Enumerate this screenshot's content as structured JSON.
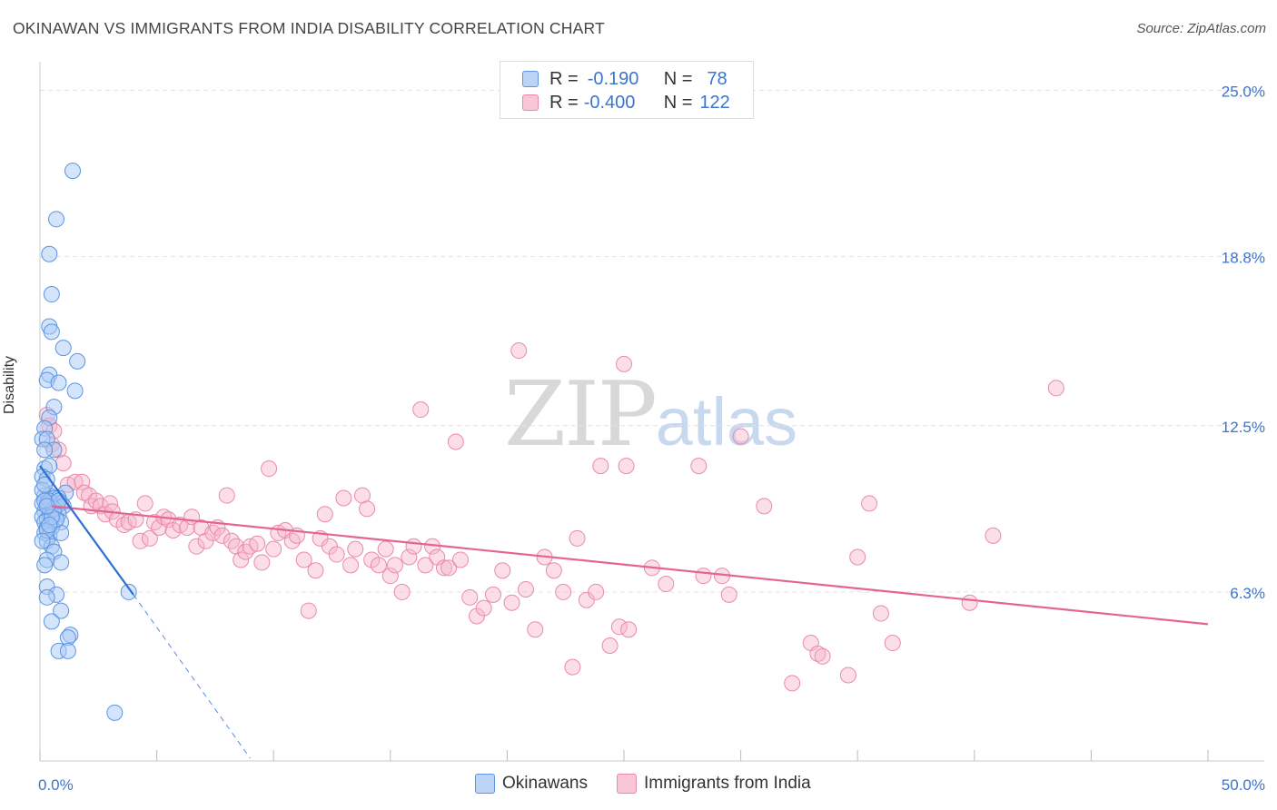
{
  "header": {
    "title": "OKINAWAN VS IMMIGRANTS FROM INDIA DISABILITY CORRELATION CHART",
    "source": "Source: ZipAtlas.com"
  },
  "legend": {
    "rows": [
      {
        "r_label": "R =",
        "r_value": "-0.190",
        "n_label": "N =",
        "n_value": "78"
      },
      {
        "r_label": "R =",
        "r_value": "-0.400",
        "n_label": "N =",
        "n_value": "122"
      }
    ]
  },
  "bottom_legend": {
    "series1": "Okinawans",
    "series2": "Immigrants from India"
  },
  "watermark": {
    "zip": "ZIP",
    "atlas": "atlas"
  },
  "colors": {
    "blue_fill": "#a9c9f5",
    "blue_stroke": "#5d95e0",
    "blue_line": "#2d6fd6",
    "pink_fill": "#f7b6cb",
    "pink_stroke": "#ea8aab",
    "pink_line": "#e46592",
    "axis_label": "#3b74d1"
  },
  "chart_data": {
    "type": "scatter",
    "title": "OKINAWAN VS IMMIGRANTS FROM INDIA DISABILITY CORRELATION CHART",
    "xlabel": "",
    "ylabel": "Disability",
    "xlim": [
      0,
      50
    ],
    "ylim": [
      0,
      26
    ],
    "x_tick_labels": [
      "0.0%",
      "50.0%"
    ],
    "y_ticks": [
      6.3,
      12.5,
      18.8,
      25.0
    ],
    "y_tick_labels": [
      "6.3%",
      "12.5%",
      "18.8%",
      "25.0%"
    ],
    "series": [
      {
        "name": "Okinawans",
        "r": -0.19,
        "n": 78,
        "trend_solid": [
          [
            0,
            11.0
          ],
          [
            4.0,
            6.2
          ]
        ],
        "trend_dashed": [
          [
            4.0,
            6.2
          ],
          [
            9.0,
            0.1
          ]
        ],
        "points": [
          [
            1.4,
            22.0
          ],
          [
            0.7,
            20.2
          ],
          [
            0.4,
            18.9
          ],
          [
            0.5,
            17.4
          ],
          [
            0.4,
            16.2
          ],
          [
            0.5,
            16.0
          ],
          [
            1.0,
            15.4
          ],
          [
            1.6,
            14.9
          ],
          [
            0.4,
            14.4
          ],
          [
            0.3,
            14.2
          ],
          [
            0.8,
            14.1
          ],
          [
            1.5,
            13.8
          ],
          [
            0.6,
            13.2
          ],
          [
            0.4,
            12.8
          ],
          [
            0.2,
            12.4
          ],
          [
            0.1,
            12.0
          ],
          [
            0.3,
            12.0
          ],
          [
            0.6,
            11.6
          ],
          [
            0.2,
            11.6
          ],
          [
            0.2,
            10.9
          ],
          [
            0.4,
            11.0
          ],
          [
            0.1,
            10.6
          ],
          [
            0.3,
            10.5
          ],
          [
            1.1,
            10.0
          ],
          [
            0.2,
            9.9
          ],
          [
            0.4,
            9.9
          ],
          [
            0.6,
            9.8
          ],
          [
            0.8,
            9.8
          ],
          [
            0.1,
            9.6
          ],
          [
            0.3,
            9.6
          ],
          [
            0.5,
            9.5
          ],
          [
            0.7,
            9.5
          ],
          [
            0.9,
            9.6
          ],
          [
            1.0,
            9.5
          ],
          [
            0.2,
            9.3
          ],
          [
            0.4,
            9.2
          ],
          [
            0.6,
            9.3
          ],
          [
            0.8,
            9.2
          ],
          [
            0.1,
            9.1
          ],
          [
            0.3,
            9.0
          ],
          [
            0.5,
            9.0
          ],
          [
            0.2,
            8.9
          ],
          [
            0.6,
            8.9
          ],
          [
            0.9,
            8.9
          ],
          [
            0.3,
            8.7
          ],
          [
            0.5,
            8.7
          ],
          [
            0.2,
            8.5
          ],
          [
            0.4,
            8.4
          ],
          [
            0.9,
            8.5
          ],
          [
            0.3,
            8.2
          ],
          [
            0.5,
            8.0
          ],
          [
            0.6,
            7.8
          ],
          [
            0.3,
            7.5
          ],
          [
            0.9,
            7.4
          ],
          [
            0.2,
            7.3
          ],
          [
            0.3,
            6.5
          ],
          [
            0.7,
            6.2
          ],
          [
            0.3,
            6.1
          ],
          [
            0.9,
            5.6
          ],
          [
            0.5,
            5.2
          ],
          [
            1.3,
            4.7
          ],
          [
            1.2,
            4.6
          ],
          [
            0.8,
            4.1
          ],
          [
            1.2,
            4.1
          ],
          [
            3.8,
            6.3
          ],
          [
            3.2,
            1.8
          ],
          [
            0.1,
            10.1
          ],
          [
            0.2,
            10.3
          ],
          [
            0.4,
            9.7
          ],
          [
            0.6,
            9.4
          ],
          [
            0.3,
            8.6
          ],
          [
            0.7,
            9.0
          ],
          [
            0.5,
            9.1
          ],
          [
            0.2,
            9.7
          ],
          [
            0.4,
            8.8
          ],
          [
            0.1,
            8.2
          ],
          [
            0.8,
            9.7
          ],
          [
            0.3,
            9.5
          ]
        ]
      },
      {
        "name": "Immigrants from India",
        "r": -0.4,
        "n": 122,
        "trend_solid": [
          [
            0.5,
            9.5
          ],
          [
            50,
            5.1
          ]
        ],
        "points": [
          [
            0.3,
            12.9
          ],
          [
            0.4,
            12.5
          ],
          [
            0.6,
            12.3
          ],
          [
            0.5,
            11.8
          ],
          [
            0.8,
            11.6
          ],
          [
            1.0,
            11.1
          ],
          [
            1.2,
            10.3
          ],
          [
            1.5,
            10.4
          ],
          [
            1.8,
            10.4
          ],
          [
            1.9,
            10.0
          ],
          [
            2.1,
            9.9
          ],
          [
            2.2,
            9.5
          ],
          [
            2.4,
            9.7
          ],
          [
            2.6,
            9.5
          ],
          [
            2.8,
            9.2
          ],
          [
            3.0,
            9.6
          ],
          [
            3.1,
            9.3
          ],
          [
            3.3,
            9.0
          ],
          [
            3.6,
            8.8
          ],
          [
            3.8,
            8.9
          ],
          [
            4.1,
            9.0
          ],
          [
            4.3,
            8.2
          ],
          [
            4.5,
            9.6
          ],
          [
            4.7,
            8.3
          ],
          [
            4.9,
            8.9
          ],
          [
            5.1,
            8.7
          ],
          [
            5.3,
            9.1
          ],
          [
            5.5,
            9.0
          ],
          [
            5.7,
            8.6
          ],
          [
            6.0,
            8.8
          ],
          [
            6.3,
            8.7
          ],
          [
            6.5,
            9.1
          ],
          [
            6.7,
            8.0
          ],
          [
            6.9,
            8.7
          ],
          [
            7.1,
            8.2
          ],
          [
            7.4,
            8.5
          ],
          [
            7.6,
            8.7
          ],
          [
            7.8,
            8.4
          ],
          [
            8.0,
            9.9
          ],
          [
            8.2,
            8.2
          ],
          [
            8.4,
            8.0
          ],
          [
            8.6,
            7.5
          ],
          [
            8.8,
            7.8
          ],
          [
            9.0,
            8.0
          ],
          [
            9.3,
            8.1
          ],
          [
            9.5,
            7.4
          ],
          [
            9.8,
            10.9
          ],
          [
            10.0,
            7.9
          ],
          [
            10.2,
            8.5
          ],
          [
            10.5,
            8.6
          ],
          [
            10.8,
            8.2
          ],
          [
            11.0,
            8.4
          ],
          [
            11.3,
            7.5
          ],
          [
            11.5,
            5.6
          ],
          [
            11.8,
            7.1
          ],
          [
            12.0,
            8.3
          ],
          [
            12.2,
            9.2
          ],
          [
            12.4,
            8.0
          ],
          [
            12.7,
            7.7
          ],
          [
            13.0,
            9.8
          ],
          [
            13.3,
            7.3
          ],
          [
            13.5,
            7.9
          ],
          [
            13.8,
            9.9
          ],
          [
            14.0,
            9.4
          ],
          [
            14.2,
            7.5
          ],
          [
            14.5,
            7.3
          ],
          [
            14.8,
            7.9
          ],
          [
            15.0,
            6.9
          ],
          [
            15.2,
            7.3
          ],
          [
            15.5,
            6.3
          ],
          [
            15.8,
            7.6
          ],
          [
            16.0,
            8.0
          ],
          [
            16.3,
            13.1
          ],
          [
            16.5,
            7.3
          ],
          [
            16.8,
            8.0
          ],
          [
            17.0,
            7.6
          ],
          [
            17.3,
            7.2
          ],
          [
            17.5,
            7.2
          ],
          [
            17.8,
            11.9
          ],
          [
            18.0,
            7.5
          ],
          [
            18.4,
            6.1
          ],
          [
            18.7,
            5.4
          ],
          [
            19.0,
            5.7
          ],
          [
            19.4,
            6.2
          ],
          [
            19.8,
            7.1
          ],
          [
            20.2,
            5.9
          ],
          [
            20.5,
            15.3
          ],
          [
            20.8,
            6.4
          ],
          [
            21.2,
            4.9
          ],
          [
            21.6,
            7.6
          ],
          [
            22.0,
            7.1
          ],
          [
            22.4,
            6.3
          ],
          [
            22.8,
            3.5
          ],
          [
            23.0,
            8.3
          ],
          [
            23.4,
            6.0
          ],
          [
            23.8,
            6.3
          ],
          [
            24.0,
            11.0
          ],
          [
            24.4,
            4.3
          ],
          [
            24.8,
            5.0
          ],
          [
            25.0,
            14.8
          ],
          [
            25.1,
            11.0
          ],
          [
            25.2,
            4.9
          ],
          [
            26.2,
            7.2
          ],
          [
            26.8,
            6.6
          ],
          [
            28.2,
            11.0
          ],
          [
            28.4,
            6.9
          ],
          [
            29.2,
            6.9
          ],
          [
            29.5,
            6.2
          ],
          [
            30.0,
            12.1
          ],
          [
            31.0,
            9.5
          ],
          [
            32.2,
            2.9
          ],
          [
            33.0,
            4.4
          ],
          [
            33.3,
            4.0
          ],
          [
            33.5,
            3.9
          ],
          [
            34.6,
            3.2
          ],
          [
            35.0,
            7.6
          ],
          [
            35.5,
            9.6
          ],
          [
            36.0,
            5.5
          ],
          [
            36.5,
            4.4
          ],
          [
            39.8,
            5.9
          ],
          [
            40.8,
            8.4
          ],
          [
            43.5,
            13.9
          ]
        ]
      }
    ]
  }
}
